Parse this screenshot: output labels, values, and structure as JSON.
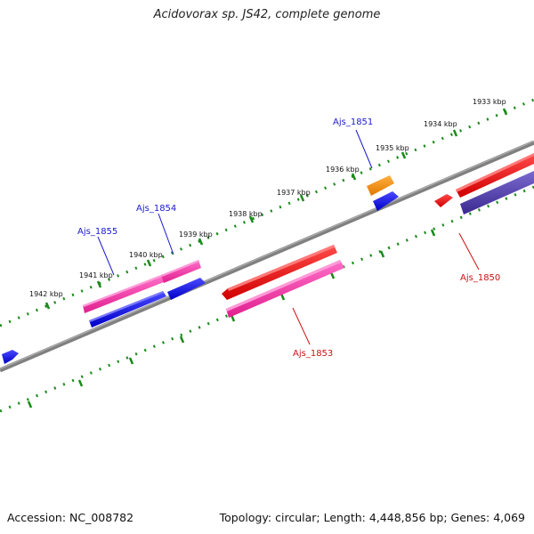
{
  "title": "Acidovorax sp. JS42, complete genome",
  "footer": {
    "accession": "Accession: NC_008782",
    "summary": "Topology: circular; Length: 4,448,856 bp; Genes: 4,069"
  },
  "tick_labels": [
    "1933 kbp",
    "1934 kbp",
    "1935 kbp",
    "1936 kbp",
    "1937 kbp",
    "1938 kbp",
    "1939 kbp",
    "1940 kbp",
    "1941 kbp",
    "1942 kbp"
  ],
  "gene_labels_forward": [
    "Ajs_1851",
    "Ajs_1854",
    "Ajs_1855"
  ],
  "gene_labels_reverse": [
    "Ajs_1850",
    "Ajs_1853"
  ],
  "colors": {
    "forward_label": "#1a1acc",
    "reverse_label": "#cc1111",
    "tick": "#1a8a1a",
    "backbone": "#808080"
  }
}
